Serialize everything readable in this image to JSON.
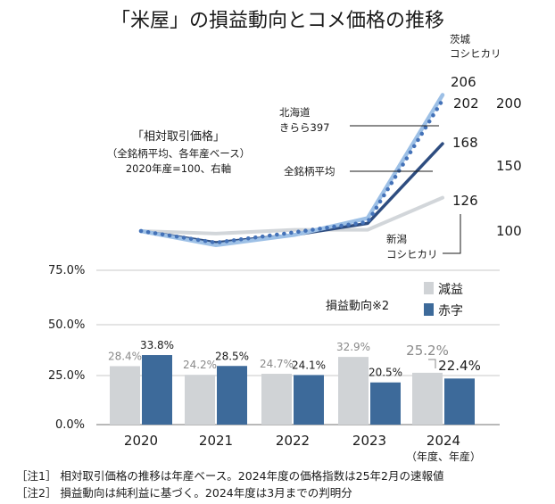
{
  "title": "「米屋」の損益動向とコメ価格の推移",
  "colors": {
    "avg": "#2e4d80",
    "hokkaido": "#4472b8",
    "ibaraki": "#9dc0e6",
    "niigata": "#d2d6da",
    "decrease": "#d0d3d6",
    "deficit": "#3d6a9a",
    "grid": "#c9c9c9"
  },
  "price_note": {
    "line1": "「相対取引価格」",
    "line2": "（全銘柄平均、各年産ベース）",
    "line3": "2020年産=100、右軸"
  },
  "notes": [
    "［注1］ 相対取引価格の推移は年産ベース。2024年度の価格指数は25年2月の速報値",
    "［注2］ 損益動向は純利益に基づく。2024年度は3月までの判明分"
  ],
  "chart_data": [
    {
      "type": "line",
      "title": "「相対取引価格」（全銘柄平均、各年産ベース）2020年産=100、右軸",
      "x": [
        "2020",
        "2021",
        "2022",
        "2023",
        "2024"
      ],
      "y_axis_side": "right",
      "y_ticks": [
        "200",
        "150",
        "100"
      ],
      "y_tick_values": [
        200,
        150,
        100
      ],
      "ylim": [
        80,
        215
      ],
      "series": [
        {
          "name": "茨城コシヒカリ",
          "name_line1": "茨城",
          "name_line2": "コシヒカリ",
          "values": [
            100,
            89,
            97,
            110,
            206
          ],
          "end_label": "206",
          "style": "solid",
          "color_key": "ibaraki"
        },
        {
          "name": "北海道きらら397",
          "name_line1": "北海道",
          "name_line2": "きらら397",
          "values": [
            100,
            91,
            99,
            107,
            202
          ],
          "end_label": "202",
          "style": "dotted",
          "color_key": "hokkaido"
        },
        {
          "name": "全銘柄平均",
          "name_line1": "全銘柄平均",
          "values": [
            100,
            91,
            97,
            106,
            168
          ],
          "end_label": "168",
          "style": "solid",
          "color_key": "avg"
        },
        {
          "name": "新潟コシヒカリ",
          "name_line1": "新潟",
          "name_line2": "コシヒカリ",
          "values": [
            100,
            98,
            101,
            101,
            126
          ],
          "end_label": "126",
          "style": "solid",
          "color_key": "niigata"
        }
      ]
    },
    {
      "type": "bar",
      "title": "損益動向※2",
      "categories": [
        "2020",
        "2021",
        "2022",
        "2023",
        "2024"
      ],
      "category_note": "（年度、年産）",
      "y_ticks": [
        "75.0%",
        "50.0%",
        "25.0%",
        "0.0%"
      ],
      "y_tick_values": [
        75,
        50,
        25,
        0
      ],
      "ylim": [
        0,
        75
      ],
      "series": [
        {
          "name": "減益",
          "values": [
            28.4,
            24.2,
            24.7,
            32.9,
            25.2
          ],
          "labels": [
            "28.4%",
            "24.2%",
            "24.7%",
            "32.9%",
            "25.2%"
          ],
          "color_key": "decrease"
        },
        {
          "name": "赤字",
          "values": [
            33.8,
            28.5,
            24.1,
            20.5,
            22.4
          ],
          "labels": [
            "33.8%",
            "28.5%",
            "24.1%",
            "20.5%",
            "22.4%"
          ],
          "color_key": "deficit"
        }
      ]
    }
  ]
}
